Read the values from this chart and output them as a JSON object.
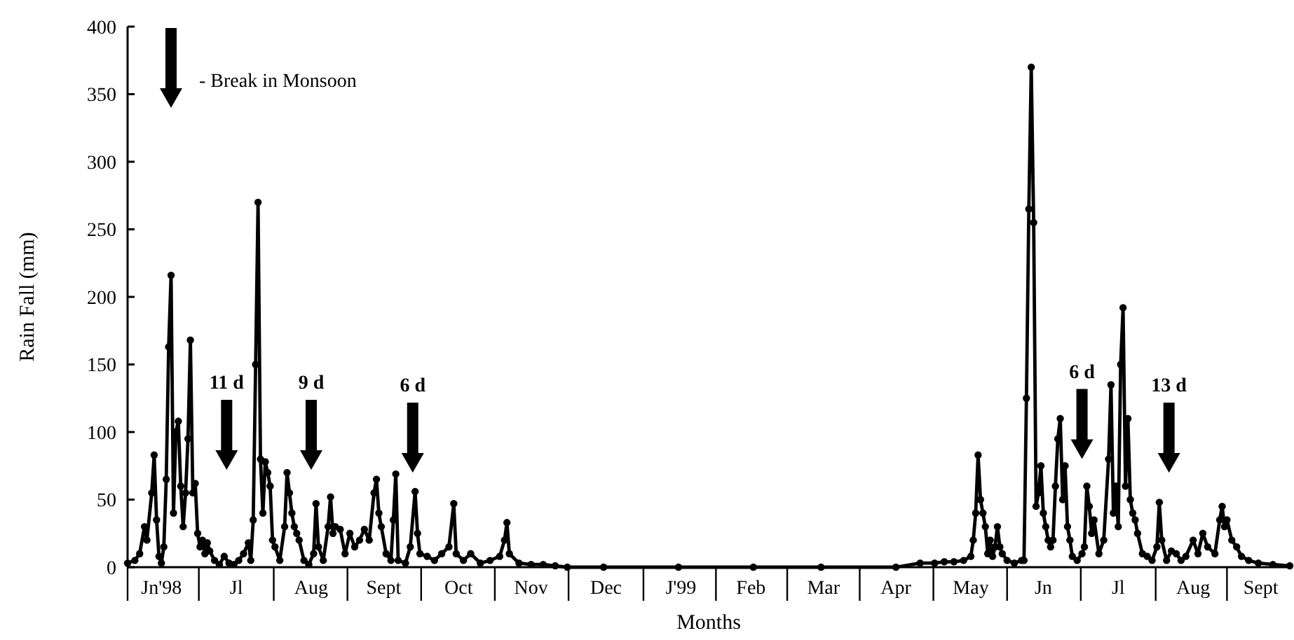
{
  "chart_data": {
    "type": "line",
    "xlabel": "Months",
    "ylabel": "Rain Fall (mm)",
    "xlim": [
      "1998-06-01",
      "1999-09-25"
    ],
    "xticks": [
      {
        "value": "1998-06-15",
        "label": "Jn'98"
      },
      {
        "value": "1998-07-16",
        "label": "Jl"
      },
      {
        "value": "1998-08-16",
        "label": "Aug"
      },
      {
        "value": "1998-09-15",
        "label": "Sept"
      },
      {
        "value": "1998-10-16",
        "label": "Oct"
      },
      {
        "value": "1998-11-15",
        "label": "Nov"
      },
      {
        "value": "1998-12-16",
        "label": "Dec"
      },
      {
        "value": "1999-01-16",
        "label": "J'99"
      },
      {
        "value": "1999-02-14",
        "label": "Feb"
      },
      {
        "value": "1999-03-16",
        "label": "Mar"
      },
      {
        "value": "1999-04-15",
        "label": "Apr"
      },
      {
        "value": "1999-05-16",
        "label": "May"
      },
      {
        "value": "1999-06-15",
        "label": "Jn"
      },
      {
        "value": "1999-07-16",
        "label": "Jl"
      },
      {
        "value": "1999-08-16",
        "label": "Aug"
      },
      {
        "value": "1999-09-13",
        "label": "Sept"
      }
    ],
    "ylim": [
      0,
      400
    ],
    "yticks": [
      0,
      50,
      100,
      150,
      200,
      250,
      300,
      350,
      400
    ],
    "grid": false,
    "marker": "circle",
    "line_style": "solid",
    "annotations": [
      "- Break in Monsoon",
      "11 d",
      "9 d",
      "6 d",
      "6 d",
      "13 d"
    ],
    "series": [
      {
        "color": "#000000",
        "x": [
          "1998-06-01",
          "1998-06-04",
          "1998-06-06",
          "1998-06-08",
          "1998-06-09",
          "1998-06-11",
          "1998-06-12",
          "1998-06-13",
          "1998-06-14",
          "1998-06-15",
          "1998-06-16",
          "1998-06-17",
          "1998-06-18",
          "1998-06-19",
          "1998-06-20",
          "1998-06-21",
          "1998-06-22",
          "1998-06-23",
          "1998-06-24",
          "1998-06-25",
          "1998-06-26",
          "1998-06-27",
          "1998-06-28",
          "1998-06-29",
          "1998-06-30",
          "1998-07-01",
          "1998-07-02",
          "1998-07-03",
          "1998-07-04",
          "1998-07-05",
          "1998-07-07",
          "1998-07-09",
          "1998-07-11",
          "1998-07-13",
          "1998-07-15",
          "1998-07-17",
          "1998-07-19",
          "1998-07-21",
          "1998-07-22",
          "1998-07-23",
          "1998-07-24",
          "1998-07-25",
          "1998-07-26",
          "1998-07-27",
          "1998-07-28",
          "1998-07-29",
          "1998-07-30",
          "1998-07-31",
          "1998-08-01",
          "1998-08-03",
          "1998-08-05",
          "1998-08-06",
          "1998-08-07",
          "1998-08-08",
          "1998-08-09",
          "1998-08-10",
          "1998-08-11",
          "1998-08-13",
          "1998-08-15",
          "1998-08-17",
          "1998-08-18",
          "1998-08-19",
          "1998-08-21",
          "1998-08-23",
          "1998-08-24",
          "1998-08-25",
          "1998-08-26",
          "1998-08-28",
          "1998-08-30",
          "1998-09-01",
          "1998-09-03",
          "1998-09-05",
          "1998-09-07",
          "1998-09-09",
          "1998-09-11",
          "1998-09-12",
          "1998-09-13",
          "1998-09-14",
          "1998-09-16",
          "1998-09-18",
          "1998-09-19",
          "1998-09-20",
          "1998-09-21",
          "1998-09-24",
          "1998-09-26",
          "1998-09-28",
          "1998-09-29",
          "1998-09-30",
          "1998-10-03",
          "1998-10-06",
          "1998-10-09",
          "1998-10-12",
          "1998-10-14",
          "1998-10-15",
          "1998-10-18",
          "1998-10-21",
          "1998-10-25",
          "1998-10-29",
          "1998-11-02",
          "1998-11-04",
          "1998-11-05",
          "1998-11-06",
          "1998-11-10",
          "1998-11-15",
          "1998-11-20",
          "1998-11-25",
          "1998-11-30",
          "1998-12-15",
          "1999-01-15",
          "1999-02-15",
          "1999-03-15",
          "1999-04-15",
          "1999-04-25",
          "1999-05-01",
          "1999-05-05",
          "1999-05-09",
          "1999-05-13",
          "1999-05-16",
          "1999-05-17",
          "1999-05-18",
          "1999-05-19",
          "1999-05-20",
          "1999-05-21",
          "1999-05-22",
          "1999-05-23",
          "1999-05-24",
          "1999-05-25",
          "1999-05-26",
          "1999-05-27",
          "1999-05-28",
          "1999-05-29",
          "1999-05-31",
          "1999-06-03",
          "1999-06-06",
          "1999-06-07",
          "1999-06-08",
          "1999-06-09",
          "1999-06-10",
          "1999-06-11",
          "1999-06-12",
          "1999-06-13",
          "1999-06-14",
          "1999-06-15",
          "1999-06-16",
          "1999-06-17",
          "1999-06-18",
          "1999-06-19",
          "1999-06-20",
          "1999-06-21",
          "1999-06-22",
          "1999-06-23",
          "1999-06-24",
          "1999-06-25",
          "1999-06-26",
          "1999-06-27",
          "1999-06-29",
          "1999-07-01",
          "1999-07-02",
          "1999-07-03",
          "1999-07-04",
          "1999-07-05",
          "1999-07-06",
          "1999-07-08",
          "1999-07-10",
          "1999-07-12",
          "1999-07-13",
          "1999-07-14",
          "1999-07-15",
          "1999-07-16",
          "1999-07-17",
          "1999-07-18",
          "1999-07-19",
          "1999-07-20",
          "1999-07-21",
          "1999-07-22",
          "1999-07-23",
          "1999-07-24",
          "1999-07-26",
          "1999-07-28",
          "1999-07-30",
          "1999-08-01",
          "1999-08-02",
          "1999-08-03",
          "1999-08-05",
          "1999-08-07",
          "1999-08-09",
          "1999-08-11",
          "1999-08-13",
          "1999-08-16",
          "1999-08-18",
          "1999-08-20",
          "1999-08-22",
          "1999-08-25",
          "1999-08-27",
          "1999-08-28",
          "1999-08-29",
          "1999-08-30",
          "1999-09-01",
          "1999-09-03",
          "1999-09-05",
          "1999-09-08",
          "1999-09-12",
          "1999-09-18",
          "1999-09-25"
        ],
        "values": [
          3,
          5,
          10,
          30,
          20,
          55,
          83,
          35,
          8,
          3,
          15,
          65,
          163,
          216,
          40,
          100,
          108,
          60,
          30,
          55,
          95,
          168,
          55,
          62,
          25,
          15,
          20,
          10,
          18,
          12,
          5,
          2,
          8,
          3,
          2,
          5,
          10,
          18,
          5,
          35,
          150,
          270,
          80,
          40,
          78,
          70,
          60,
          20,
          15,
          5,
          30,
          70,
          55,
          40,
          30,
          25,
          20,
          5,
          2,
          10,
          47,
          15,
          5,
          30,
          52,
          25,
          30,
          28,
          10,
          25,
          15,
          20,
          28,
          20,
          55,
          65,
          40,
          30,
          10,
          5,
          35,
          69,
          5,
          3,
          15,
          56,
          25,
          10,
          8,
          5,
          10,
          15,
          47,
          10,
          5,
          10,
          3,
          5,
          8,
          20,
          33,
          10,
          3,
          2,
          2,
          1,
          0,
          0,
          0,
          0,
          0,
          0,
          3,
          3,
          4,
          4,
          5,
          8,
          20,
          40,
          83,
          50,
          40,
          30,
          10,
          20,
          8,
          15,
          30,
          15,
          10,
          5,
          3,
          5,
          5,
          125,
          265,
          370,
          255,
          45,
          55,
          75,
          40,
          30,
          20,
          15,
          20,
          60,
          95,
          110,
          50,
          75,
          30,
          20,
          8,
          5,
          10,
          15,
          60,
          45,
          25,
          35,
          10,
          20,
          80,
          135,
          40,
          60,
          30,
          150,
          192,
          60,
          110,
          50,
          40,
          35,
          25,
          10,
          8,
          5,
          15,
          48,
          20,
          5,
          12,
          10,
          5,
          8,
          20,
          10,
          25,
          15,
          10,
          35,
          45,
          30,
          35,
          20,
          15,
          8,
          5,
          3,
          2,
          1
        ]
      }
    ]
  }
}
